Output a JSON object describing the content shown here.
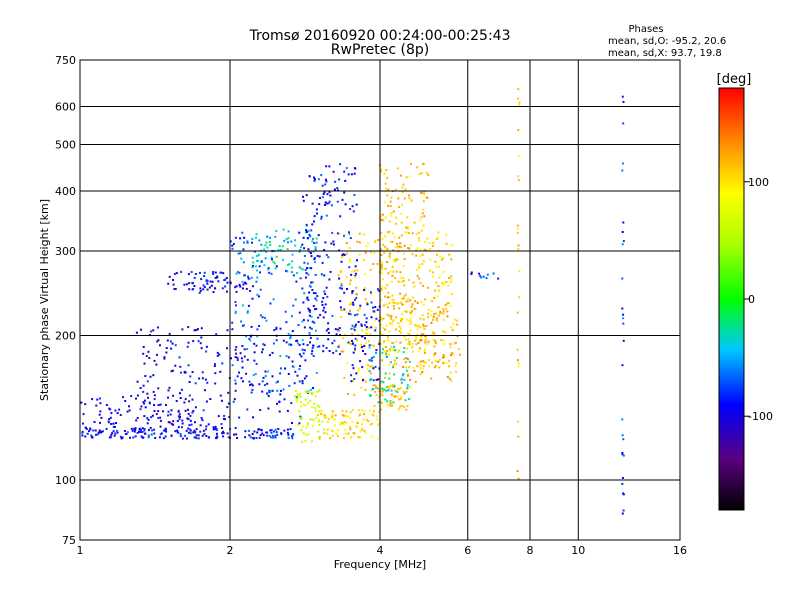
{
  "chart_data": {
    "type": "scatter",
    "title": "Tromsø 20160920 00:24:00-00:25:43",
    "subtitle": "RwPretec (8p)",
    "xlabel": "Frequency [MHz]",
    "ylabel": "Stationary phase Virtual Height [km]",
    "x_scale": "log",
    "y_scale": "log",
    "xlim": [
      1,
      16
    ],
    "ylim": [
      75,
      750
    ],
    "x_ticks": [
      "1",
      "2",
      "4",
      "6",
      "8",
      "10",
      "16"
    ],
    "x_tick_values": [
      1,
      2,
      4,
      6,
      8,
      10,
      16
    ],
    "y_ticks": [
      "75",
      "100",
      "200",
      "300",
      "400",
      "500",
      "600",
      "750"
    ],
    "y_tick_values": [
      75,
      100,
      200,
      300,
      400,
      500,
      600,
      750
    ],
    "x_gridlines": [
      2,
      4,
      6,
      8,
      10
    ],
    "y_gridlines": [
      100,
      200,
      300,
      400,
      500,
      600
    ],
    "grid": true,
    "stats": {
      "heading": "Phases",
      "line_o": "mean, sd,O: -95.2, 20.6",
      "line_x": "mean, sd,X:  93.7, 19.8"
    },
    "colorbar": {
      "label": "[deg]",
      "ticks": [
        "100",
        "0",
        "-100"
      ],
      "tick_values": [
        100,
        0,
        -100
      ],
      "range": [
        -180,
        180
      ],
      "colormap": "rainbow"
    },
    "point_groups": [
      {
        "xmin": 1.0,
        "xmax": 2.7,
        "ymin": 122,
        "ymax": 128,
        "n": 160,
        "phase": -90
      },
      {
        "xmin": 1.0,
        "xmax": 1.7,
        "ymin": 122,
        "ymax": 150,
        "n": 110,
        "phase": -100
      },
      {
        "xmin": 1.3,
        "xmax": 2.8,
        "ymin": 128,
        "ymax": 210,
        "n": 230,
        "phase": -98
      },
      {
        "xmin": 1.5,
        "xmax": 2.2,
        "ymin": 245,
        "ymax": 272,
        "n": 80,
        "phase": -95
      },
      {
        "xmin": 2.0,
        "xmax": 3.0,
        "ymin": 150,
        "ymax": 330,
        "n": 180,
        "phase": -70
      },
      {
        "xmin": 2.2,
        "xmax": 3.0,
        "ymin": 270,
        "ymax": 340,
        "n": 70,
        "phase": -35
      },
      {
        "xmin": 2.8,
        "xmax": 3.6,
        "ymin": 180,
        "ymax": 460,
        "n": 200,
        "phase": -88
      },
      {
        "xmin": 2.7,
        "xmax": 3.1,
        "ymin": 120,
        "ymax": 155,
        "n": 60,
        "phase": 60
      },
      {
        "xmin": 3.0,
        "xmax": 4.0,
        "ymin": 122,
        "ymax": 140,
        "n": 90,
        "phase": 100
      },
      {
        "xmin": 3.3,
        "xmax": 4.3,
        "ymin": 150,
        "ymax": 330,
        "n": 160,
        "phase": 110
      },
      {
        "xmin": 3.5,
        "xmax": 4.0,
        "ymin": 160,
        "ymax": 250,
        "n": 70,
        "phase": -90
      },
      {
        "xmin": 3.8,
        "xmax": 4.6,
        "ymin": 145,
        "ymax": 190,
        "n": 60,
        "phase": -30
      },
      {
        "xmin": 4.0,
        "xmax": 5.6,
        "ymin": 170,
        "ymax": 330,
        "n": 260,
        "phase": 105
      },
      {
        "xmin": 4.0,
        "xmax": 5.0,
        "ymin": 300,
        "ymax": 460,
        "n": 90,
        "phase": 112
      },
      {
        "xmin": 4.3,
        "xmax": 5.8,
        "ymin": 160,
        "ymax": 240,
        "n": 120,
        "phase": 118
      },
      {
        "xmin": 3.9,
        "xmax": 4.6,
        "ymin": 140,
        "ymax": 160,
        "n": 40,
        "phase": 120
      },
      {
        "xmin": 6.1,
        "xmax": 7.0,
        "ymin": 262,
        "ymax": 272,
        "n": 10,
        "phase": -85
      },
      {
        "xmin": 7.55,
        "xmax": 7.65,
        "ymin": 90,
        "ymax": 660,
        "n": 24,
        "phase": 110
      },
      {
        "xmin": 12.25,
        "xmax": 12.35,
        "ymin": 85,
        "ymax": 680,
        "n": 28,
        "phase": -80
      }
    ]
  }
}
